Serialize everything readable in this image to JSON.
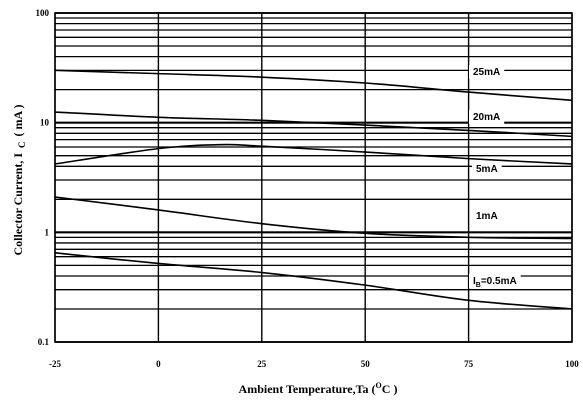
{
  "chart_data": {
    "type": "line",
    "xlabel": "Ambient Temperature,Ta (°C)",
    "xlabel_main": "Ambient Temperature,Ta (",
    "xlabel_sup": "O",
    "xlabel_end": "C )",
    "ylabel": "Collector Current, I C (mA)",
    "ylabel_main": "Collector Current, I",
    "ylabel_sub": "C",
    "ylabel_end": "( mA )",
    "xlim": [
      -25,
      100
    ],
    "ylim": [
      0.1,
      100
    ],
    "yscale": "log",
    "grid": true,
    "x_ticks": [
      -25,
      0,
      25,
      50,
      75,
      100
    ],
    "x_tick_labels": [
      "-25",
      "0",
      "25",
      "50",
      "75",
      "100"
    ],
    "y_ticks": [
      0.1,
      1,
      10,
      100
    ],
    "y_tick_labels": [
      "0.1",
      "1",
      "10",
      "100"
    ],
    "series": [
      {
        "name": "25mA",
        "x": [
          -25,
          0,
          25,
          50,
          75,
          100
        ],
        "y": [
          30,
          28,
          26,
          23,
          19,
          16
        ]
      },
      {
        "name": "20mA",
        "x": [
          -25,
          0,
          25,
          50,
          75,
          100
        ],
        "y": [
          12.5,
          11.2,
          10.5,
          9.5,
          8.5,
          7.5
        ]
      },
      {
        "name": "5mA",
        "x": [
          -25,
          0,
          15,
          25,
          50,
          75,
          100
        ],
        "y": [
          4.2,
          5.8,
          6.3,
          6.1,
          5.4,
          4.7,
          4.2
        ]
      },
      {
        "name": "1mA",
        "x": [
          -25,
          0,
          25,
          50,
          75,
          100
        ],
        "y": [
          2.1,
          1.6,
          1.2,
          0.98,
          0.9,
          0.88
        ]
      },
      {
        "name": "I_B=0.5mA",
        "display_name": "IB=0.5mA",
        "x": [
          -25,
          0,
          25,
          50,
          75,
          100
        ],
        "y": [
          0.65,
          0.52,
          0.43,
          0.33,
          0.24,
          0.2
        ]
      }
    ]
  }
}
